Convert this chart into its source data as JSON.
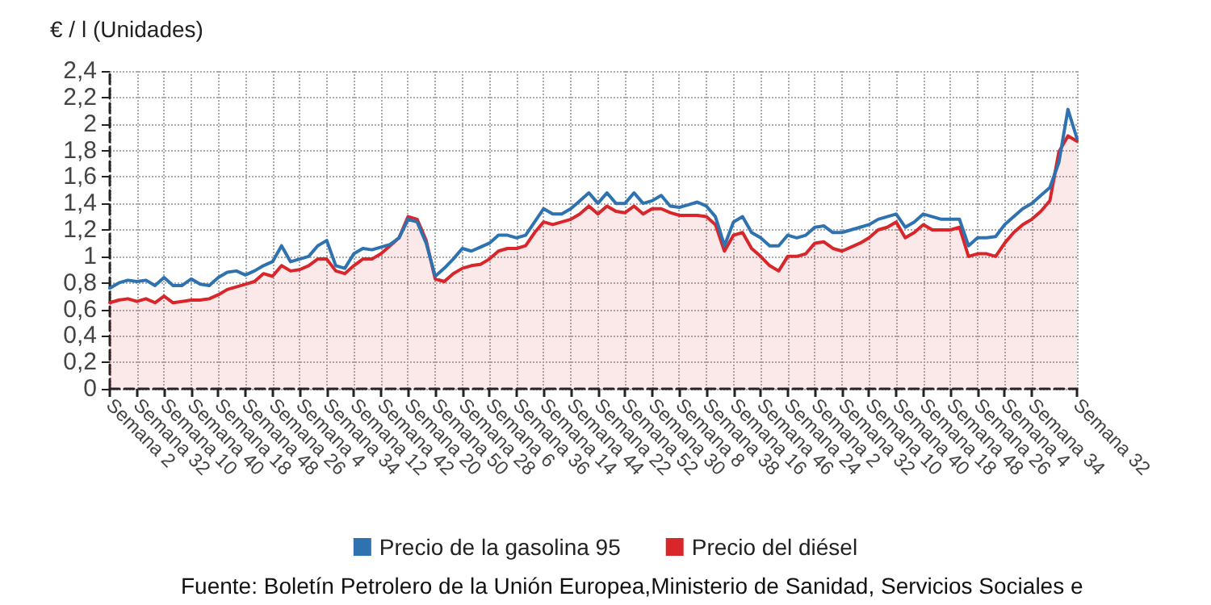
{
  "chart_data": {
    "type": "line",
    "ylabel": "€ / l (Unidades)",
    "categories": [
      "Semana 2",
      null,
      null,
      "Semana 32",
      null,
      null,
      "Semana 10",
      null,
      null,
      "Semana 40",
      null,
      null,
      "Semana 18",
      null,
      null,
      "Semana 48",
      null,
      null,
      "Semana 26",
      null,
      null,
      "Semana 4",
      null,
      null,
      "Semana 34",
      null,
      null,
      "Semana 12",
      null,
      null,
      "Semana 42",
      null,
      null,
      "Semana 20",
      null,
      null,
      "Semana 50",
      null,
      null,
      "Semana 28",
      null,
      null,
      "Semana 6",
      null,
      null,
      "Semana 36",
      null,
      null,
      "Semana 14",
      null,
      null,
      "Semana 44",
      null,
      null,
      "Semana 22",
      null,
      null,
      "Semana 52",
      null,
      null,
      "Semana 30",
      null,
      null,
      "Semana 8",
      null,
      null,
      "Semana 38",
      null,
      null,
      "Semana 16",
      null,
      null,
      "Semana 46",
      null,
      null,
      "Semana 24",
      null,
      null,
      "Semana 2",
      null,
      null,
      "Semana 32",
      null,
      null,
      "Semana 10",
      null,
      null,
      "Semana 40",
      null,
      null,
      "Semana 18",
      null,
      null,
      "Semana 48",
      null,
      null,
      "Semana 26",
      null,
      null,
      "Semana 4",
      null,
      null,
      "Semana 34",
      null,
      null,
      null,
      null,
      "Semana 32"
    ],
    "series": [
      {
        "name": "Precio de la gasolina 95",
        "color": "#2f72b0",
        "type": "line",
        "values": [
          0.76,
          0.8,
          0.82,
          0.81,
          0.82,
          0.78,
          0.84,
          0.78,
          0.78,
          0.83,
          0.79,
          0.78,
          0.84,
          0.88,
          0.89,
          0.86,
          0.89,
          0.93,
          0.96,
          1.08,
          0.96,
          0.98,
          1.0,
          1.08,
          1.12,
          0.93,
          0.91,
          1.02,
          1.06,
          1.05,
          1.07,
          1.09,
          1.14,
          1.28,
          1.26,
          1.1,
          0.85,
          0.91,
          0.98,
          1.06,
          1.04,
          1.07,
          1.1,
          1.16,
          1.16,
          1.14,
          1.16,
          1.26,
          1.36,
          1.32,
          1.32,
          1.36,
          1.42,
          1.48,
          1.4,
          1.48,
          1.4,
          1.4,
          1.48,
          1.4,
          1.42,
          1.46,
          1.38,
          1.37,
          1.39,
          1.41,
          1.38,
          1.3,
          1.08,
          1.26,
          1.3,
          1.18,
          1.14,
          1.08,
          1.08,
          1.16,
          1.14,
          1.16,
          1.22,
          1.23,
          1.18,
          1.18,
          1.2,
          1.22,
          1.24,
          1.28,
          1.3,
          1.32,
          1.22,
          1.26,
          1.32,
          1.3,
          1.28,
          1.28,
          1.28,
          1.08,
          1.14,
          1.14,
          1.15,
          1.24,
          1.3,
          1.36,
          1.4,
          1.46,
          1.52,
          1.71,
          2.11,
          1.89
        ]
      },
      {
        "name": "Precio del diésel",
        "color": "#d9262b",
        "type": "area",
        "values": [
          0.65,
          0.67,
          0.68,
          0.66,
          0.68,
          0.65,
          0.7,
          0.65,
          0.66,
          0.67,
          0.67,
          0.68,
          0.71,
          0.75,
          0.77,
          0.79,
          0.81,
          0.87,
          0.85,
          0.93,
          0.89,
          0.9,
          0.93,
          0.98,
          0.98,
          0.89,
          0.87,
          0.93,
          0.98,
          0.98,
          1.02,
          1.08,
          1.14,
          1.3,
          1.28,
          1.12,
          0.83,
          0.81,
          0.87,
          0.91,
          0.93,
          0.94,
          0.98,
          1.04,
          1.06,
          1.06,
          1.08,
          1.18,
          1.26,
          1.24,
          1.26,
          1.28,
          1.32,
          1.38,
          1.32,
          1.38,
          1.34,
          1.33,
          1.38,
          1.32,
          1.36,
          1.36,
          1.33,
          1.31,
          1.31,
          1.31,
          1.3,
          1.24,
          1.04,
          1.16,
          1.18,
          1.06,
          1.0,
          0.93,
          0.89,
          1.0,
          1.0,
          1.02,
          1.1,
          1.11,
          1.06,
          1.04,
          1.07,
          1.1,
          1.14,
          1.2,
          1.22,
          1.26,
          1.14,
          1.18,
          1.24,
          1.2,
          1.2,
          1.2,
          1.22,
          1.0,
          1.02,
          1.02,
          1.0,
          1.1,
          1.18,
          1.24,
          1.28,
          1.34,
          1.42,
          1.79,
          1.91,
          1.87
        ]
      }
    ],
    "ylim": [
      0,
      2.4
    ],
    "yticks": [
      0,
      {
        "value": 0.2,
        "label": "0,2"
      },
      {
        "value": 0.4,
        "label": "0,4"
      },
      {
        "value": 0.6,
        "label": "0,6"
      },
      {
        "value": 0.8,
        "label": "0,8"
      },
      1,
      {
        "value": 1.2,
        "label": "1,2"
      },
      {
        "value": 1.4,
        "label": "1,4"
      },
      {
        "value": 1.6,
        "label": "1,6"
      },
      {
        "value": 1.8,
        "label": "1,8"
      },
      2,
      {
        "value": 2.2,
        "label": "2,2"
      },
      {
        "value": 2.4,
        "label": "2,4"
      }
    ],
    "grid": true,
    "legend": "bottom",
    "marker": "none",
    "line_style": "solid",
    "annotations": [
      "Fuente: Boletín Petrolero de la Unión Europea,Ministerio de Sanidad, Servicios Sociales e"
    ]
  }
}
